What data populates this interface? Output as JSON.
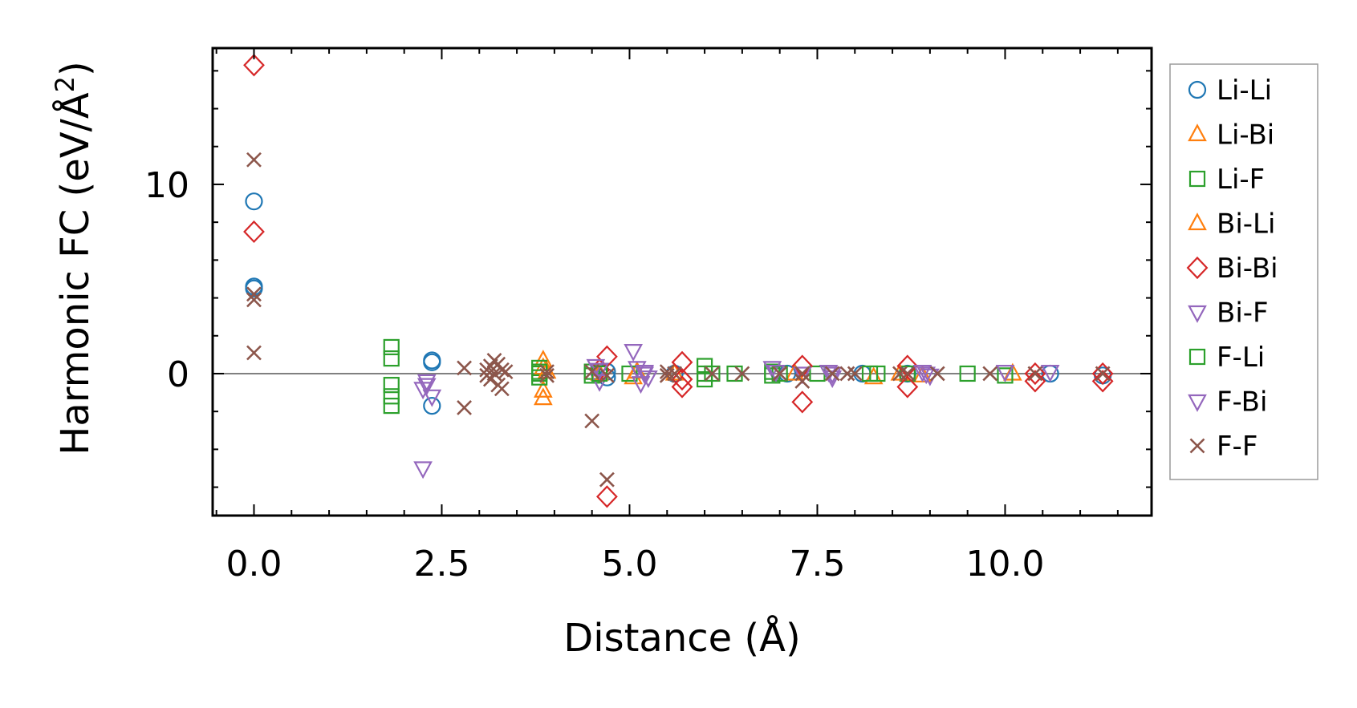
{
  "chart_data": {
    "type": "scatter",
    "title": "",
    "xlabel": "Distance (Å)",
    "ylabel_main": "Harmonic FC (eV/Å",
    "ylabel_sup": "2",
    "ylabel_close": ")",
    "xlim": [
      -0.55,
      11.95
    ],
    "ylim": [
      -7.5,
      17.2
    ],
    "xticks": [
      {
        "value": 0,
        "label": "0.0"
      },
      {
        "value": 2.5,
        "label": "2.5"
      },
      {
        "value": 5,
        "label": "5.0"
      },
      {
        "value": 7.5,
        "label": "7.5"
      },
      {
        "value": 10,
        "label": "10.0"
      }
    ],
    "yticks": [
      {
        "value": 0,
        "label": "0"
      },
      {
        "value": 10,
        "label": "10"
      }
    ],
    "x_minor_step": 0.5,
    "y_minor_step": 2,
    "zero_line": true,
    "legend_position": "outside-right",
    "series": [
      {
        "name": "Li-Li",
        "marker": "circle",
        "color": "#1f77b4",
        "points": [
          [
            0,
            9.1
          ],
          [
            0,
            4.6
          ],
          [
            0,
            4.5
          ],
          [
            2.37,
            0.7
          ],
          [
            2.37,
            0.6
          ],
          [
            2.37,
            -1.7
          ],
          [
            4.7,
            0.1
          ],
          [
            4.7,
            -0.2
          ],
          [
            5.6,
            0.0
          ],
          [
            7.1,
            0.0
          ],
          [
            8.1,
            0.0
          ],
          [
            8.7,
            0.0
          ],
          [
            10.6,
            0.0
          ],
          [
            11.3,
            -0.1
          ]
        ]
      },
      {
        "name": "Li-Bi",
        "marker": "triangle-up",
        "color": "#ff7f0e",
        "points": [
          [
            3.85,
            0.7
          ],
          [
            3.85,
            0.3
          ],
          [
            3.85,
            -1.3
          ],
          [
            3.85,
            -0.9
          ],
          [
            5.05,
            -0.2
          ],
          [
            5.1,
            0.1
          ],
          [
            8.25,
            -0.2
          ],
          [
            8.9,
            -0.1
          ],
          [
            10.1,
            0.0
          ]
        ]
      },
      {
        "name": "Li-F",
        "marker": "square",
        "color": "#2ca02c",
        "points": [
          [
            1.83,
            1.4
          ],
          [
            1.83,
            0.8
          ],
          [
            1.83,
            -0.6
          ],
          [
            1.83,
            -1.2
          ],
          [
            1.83,
            -1.7
          ],
          [
            3.8,
            0.3
          ],
          [
            3.8,
            0.0
          ],
          [
            3.8,
            -0.2
          ],
          [
            4.5,
            0.1
          ],
          [
            4.5,
            -0.1
          ],
          [
            5.0,
            0.0
          ],
          [
            6.0,
            0.4
          ],
          [
            6.0,
            0.0
          ],
          [
            6.0,
            -0.3
          ],
          [
            6.4,
            0.0
          ],
          [
            6.9,
            0.1
          ],
          [
            6.9,
            -0.1
          ],
          [
            7.5,
            0.0
          ],
          [
            8.2,
            0.0
          ],
          [
            8.7,
            0.0
          ],
          [
            9.5,
            0.0
          ],
          [
            10.0,
            -0.1
          ]
        ]
      },
      {
        "name": "Bi-Li",
        "marker": "triangle-up",
        "color": "#ff7f0e",
        "points": [
          [
            3.9,
            0.1
          ],
          [
            4.6,
            0.0
          ],
          [
            5.6,
            0.0
          ],
          [
            7.2,
            0.0
          ],
          [
            8.6,
            0.0
          ]
        ]
      },
      {
        "name": "Bi-Bi",
        "marker": "diamond",
        "color": "#d62728",
        "points": [
          [
            0,
            16.3
          ],
          [
            0,
            7.5
          ],
          [
            4.7,
            0.9
          ],
          [
            4.7,
            -6.5
          ],
          [
            4.6,
            0.2
          ],
          [
            5.7,
            0.6
          ],
          [
            5.7,
            -0.3
          ],
          [
            5.7,
            -0.7
          ],
          [
            7.3,
            0.4
          ],
          [
            7.3,
            -1.5
          ],
          [
            8.7,
            0.4
          ],
          [
            8.7,
            -0.7
          ],
          [
            10.4,
            0.0
          ],
          [
            10.4,
            -0.4
          ],
          [
            11.3,
            0.0
          ],
          [
            11.3,
            -0.4
          ]
        ]
      },
      {
        "name": "Bi-F",
        "marker": "triangle-down",
        "color": "#9467bd",
        "points": [
          [
            2.25,
            -0.8
          ],
          [
            2.25,
            -5.0
          ],
          [
            2.3,
            -0.6
          ],
          [
            2.37,
            -1.2
          ],
          [
            4.55,
            0.4
          ],
          [
            4.6,
            -0.4
          ],
          [
            5.05,
            1.2
          ],
          [
            5.1,
            0.3
          ],
          [
            5.2,
            0.1
          ],
          [
            5.25,
            -0.2
          ],
          [
            5.15,
            -0.5
          ],
          [
            6.9,
            0.3
          ],
          [
            7.3,
            0.0
          ],
          [
            7.65,
            0.1
          ],
          [
            7.7,
            -0.2
          ],
          [
            8.9,
            0.1
          ],
          [
            9.0,
            -0.1
          ],
          [
            10.0,
            0.1
          ],
          [
            10.6,
            0.1
          ]
        ]
      },
      {
        "name": "F-Li",
        "marker": "square",
        "color": "#2ca02c",
        "points": [
          [
            3.8,
            0.1
          ],
          [
            4.6,
            0.0
          ],
          [
            6.1,
            0.0
          ],
          [
            7.0,
            0.0
          ],
          [
            8.3,
            0.0
          ]
        ]
      },
      {
        "name": "F-Bi",
        "marker": "triangle-down",
        "color": "#9467bd",
        "points": [
          [
            2.3,
            -0.4
          ],
          [
            4.6,
            0.2
          ],
          [
            5.2,
            0.0
          ],
          [
            6.95,
            0.1
          ],
          [
            7.7,
            0.0
          ],
          [
            8.95,
            0.0
          ]
        ]
      },
      {
        "name": "F-F",
        "marker": "x",
        "color": "#8c564b",
        "points": [
          [
            0,
            11.3
          ],
          [
            0,
            4.2
          ],
          [
            0,
            3.9
          ],
          [
            0,
            1.1
          ],
          [
            2.8,
            0.3
          ],
          [
            2.8,
            -1.8
          ],
          [
            3.1,
            0.2
          ],
          [
            3.1,
            -0.1
          ],
          [
            3.15,
            0.4
          ],
          [
            3.15,
            -0.3
          ],
          [
            3.2,
            0.7
          ],
          [
            3.2,
            0.0
          ],
          [
            3.25,
            -0.6
          ],
          [
            3.25,
            0.5
          ],
          [
            3.3,
            0.2
          ],
          [
            3.3,
            -0.8
          ],
          [
            3.35,
            0.1
          ],
          [
            3.9,
            0.1
          ],
          [
            3.9,
            -0.1
          ],
          [
            4.5,
            0.1
          ],
          [
            4.5,
            -2.5
          ],
          [
            4.7,
            -5.6
          ],
          [
            4.7,
            -0.1
          ],
          [
            5.5,
            0.1
          ],
          [
            5.5,
            -0.1
          ],
          [
            5.6,
            0.0
          ],
          [
            6.1,
            0.0
          ],
          [
            6.5,
            0.0
          ],
          [
            7.0,
            0.0
          ],
          [
            7.3,
            0.0
          ],
          [
            7.3,
            -0.4
          ],
          [
            7.7,
            0.0
          ],
          [
            7.9,
            0.0
          ],
          [
            8.0,
            0.0
          ],
          [
            8.6,
            0.0
          ],
          [
            8.7,
            0.0
          ],
          [
            9.1,
            0.0
          ],
          [
            9.8,
            0.0
          ],
          [
            10.4,
            0.0
          ],
          [
            11.3,
            0.0
          ]
        ]
      }
    ]
  }
}
